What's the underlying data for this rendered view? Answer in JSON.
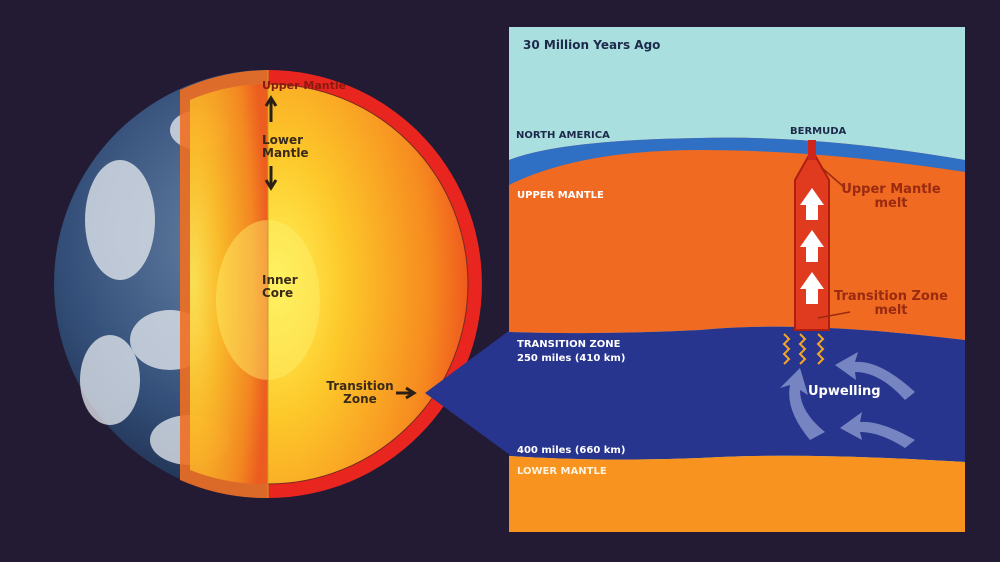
{
  "earth": {
    "upper_mantle": "Upper Mantle",
    "lower_mantle": "Lower Mantle",
    "inner_core": "Inner Core",
    "transition_zone": "Transition Zone"
  },
  "panel": {
    "title": "30 Million Years Ago",
    "north_america": "NORTH AMERICA",
    "bermuda": "BERMUDA",
    "upper_mantle": "UPPER MANTLE",
    "upper_mantle_melt": "Upper Mantle melt",
    "transition_zone": "TRANSITION ZONE",
    "depth_410": "250 miles (410 km)",
    "transition_zone_melt": "Transition Zone melt",
    "upwelling": "Upwelling",
    "depth_660": "400 miles (660 km)",
    "lower_mantle": "LOWER MANTLE"
  }
}
